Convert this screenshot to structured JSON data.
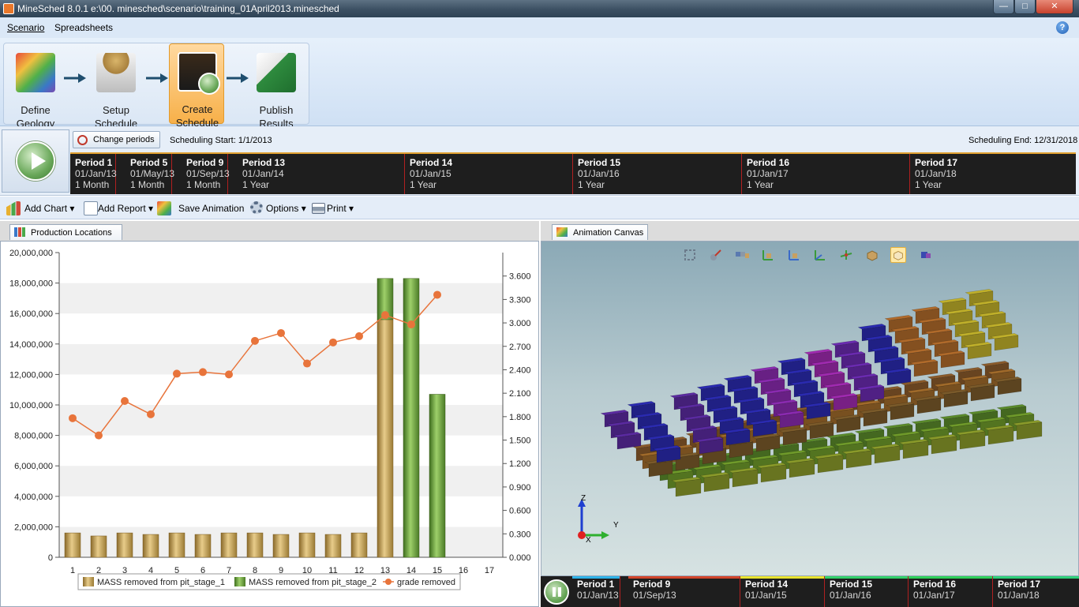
{
  "window": {
    "app_name": "MineSched 8.0.1",
    "document_path": "e:\\00. minesched\\scenario\\training_01April2013.minesched"
  },
  "menu": {
    "items": [
      "Scenario",
      "Spreadsheets"
    ]
  },
  "workflow": {
    "steps": [
      {
        "line1": "Define",
        "line2": "Geology"
      },
      {
        "line1": "Setup",
        "line2": "Schedule"
      },
      {
        "line1": "Create",
        "line2": "Schedule"
      },
      {
        "line1": "Publish",
        "line2": "Results"
      }
    ],
    "active_step": 2
  },
  "scheduling": {
    "change_periods_label": "Change periods",
    "start_label": "Scheduling Start: 1/1/2013",
    "end_label": "Scheduling End: 12/31/2018"
  },
  "periods": [
    {
      "name": "Period 1",
      "date": "01/Jan/13",
      "duration": "1 Month"
    },
    {
      "name": "Period 5",
      "date": "01/May/13",
      "duration": "1 Month"
    },
    {
      "name": "Period 9",
      "date": "01/Sep/13",
      "duration": "1 Month"
    },
    {
      "name": "Period 13",
      "date": "01/Jan/14",
      "duration": "1 Year"
    },
    {
      "name": "Period 14",
      "date": "01/Jan/15",
      "duration": "1 Year"
    },
    {
      "name": "Period 15",
      "date": "01/Jan/16",
      "duration": "1 Year"
    },
    {
      "name": "Period 16",
      "date": "01/Jan/17",
      "duration": "1 Year"
    },
    {
      "name": "Period 17",
      "date": "01/Jan/18",
      "duration": "1 Year"
    }
  ],
  "toolbar": {
    "add_chart": "Add Chart",
    "add_report": "Add Report",
    "save_animation": "Save Animation",
    "options": "Options",
    "print": "Print"
  },
  "left_panel": {
    "tab_label": "Production Locations"
  },
  "right_panel": {
    "tab_label": "Animation Canvas"
  },
  "canvas": {
    "axis_labels": {
      "z": "Z",
      "y": "Y",
      "x": "X"
    }
  },
  "bottom_timeline": [
    {
      "name": "Period 1",
      "date": "01/Jan/13",
      "color": "#2fb3e8"
    },
    {
      "name": "Period 9",
      "date": "01/Sep/13",
      "color": "#d2452a"
    },
    {
      "name": "Period 14",
      "date": "01/Jan/15",
      "color": "#e8e32f"
    },
    {
      "name": "Period 15",
      "date": "01/Jan/16",
      "color": "#33d16a"
    },
    {
      "name": "Period 16",
      "date": "01/Jan/17",
      "color": "#2fd15a"
    },
    {
      "name": "Period 17",
      "date": "01/Jan/18",
      "color": "#2fd17a"
    }
  ],
  "colors": {
    "stage1": "#c9a253",
    "stage2": "#6fa83f",
    "grade": "#e8743b",
    "timeline_bg": "#1e1e1e",
    "timeline_divider": "#b02020",
    "accent_orange": "#f7b049"
  },
  "chart_data": {
    "type": "bar",
    "categories": [
      "1",
      "2",
      "3",
      "4",
      "5",
      "6",
      "7",
      "8",
      "9",
      "10",
      "11",
      "12",
      "13",
      "14",
      "15",
      "16",
      "17"
    ],
    "series": [
      {
        "name": "MASS removed from pit_stage_1",
        "kind": "bar",
        "axis": "left",
        "values": [
          1600000,
          1400000,
          1600000,
          1500000,
          1600000,
          1500000,
          1600000,
          1600000,
          1500000,
          1600000,
          1500000,
          1600000,
          15600000,
          0,
          0,
          0,
          0
        ]
      },
      {
        "name": "MASS removed from pit_stage_2",
        "kind": "bar",
        "axis": "left",
        "values": [
          0,
          0,
          0,
          0,
          0,
          0,
          0,
          0,
          0,
          0,
          0,
          0,
          2700000,
          18300000,
          10700000,
          0,
          0
        ]
      },
      {
        "name": "grade removed",
        "kind": "line",
        "axis": "right",
        "values": [
          1.78,
          1.56,
          2.0,
          1.83,
          2.35,
          2.37,
          2.34,
          2.77,
          2.87,
          2.48,
          2.75,
          2.83,
          3.1,
          2.98,
          3.36,
          null,
          null
        ]
      }
    ],
    "ylim": [
      0,
      20000000
    ],
    "yticks": [
      "0",
      "2,000,000",
      "4,000,000",
      "6,000,000",
      "8,000,000",
      "10,000,000",
      "12,000,000",
      "14,000,000",
      "16,000,000",
      "18,000,000",
      "20,000,000"
    ],
    "y2lim": [
      0,
      3.9
    ],
    "y2ticks": [
      "0.000",
      "0.300",
      "0.600",
      "0.900",
      "1.200",
      "1.500",
      "1.800",
      "2.100",
      "2.400",
      "2.700",
      "3.000",
      "3.300",
      "3.600"
    ],
    "legend_position": "bottom",
    "grid": true
  }
}
